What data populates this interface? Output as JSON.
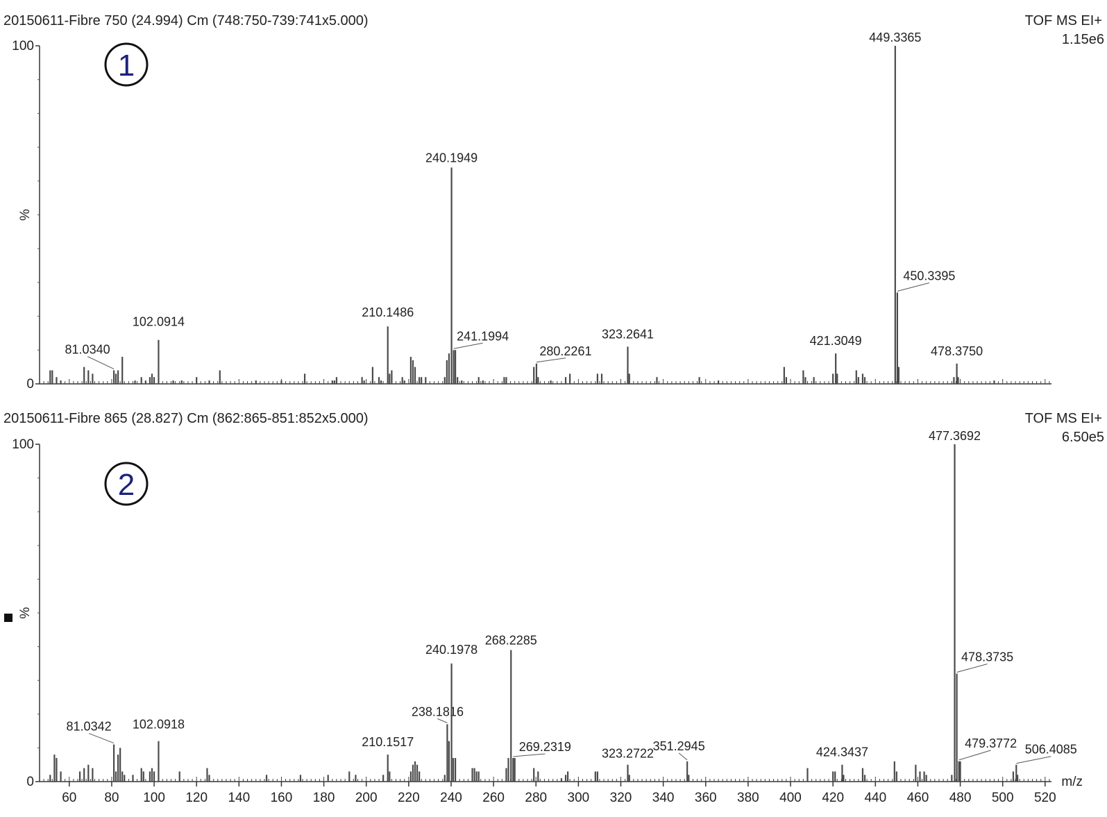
{
  "chart_data": [
    {
      "type": "bar",
      "panel_number": "1",
      "title": "20150611-Fibre 750 (24.994) Cm (748:750-739:741x5.000)",
      "mode_label": "TOF MS EI+",
      "intensity_label": "1.15e6",
      "ylabel": "%",
      "y_tick_labels": [
        "100",
        "0"
      ],
      "ylim": [
        0,
        100
      ],
      "xlim": [
        46,
        523
      ],
      "labeled_peaks": [
        {
          "mz": 81.034,
          "label": "81.0340",
          "intensity": 4
        },
        {
          "mz": 102.0914,
          "label": "102.0914",
          "intensity": 13
        },
        {
          "mz": 210.1486,
          "label": "210.1486",
          "intensity": 17
        },
        {
          "mz": 240.1949,
          "label": "240.1949",
          "intensity": 64
        },
        {
          "mz": 241.1994,
          "label": "241.1994",
          "intensity": 10
        },
        {
          "mz": 280.2261,
          "label": "280.2261",
          "intensity": 6
        },
        {
          "mz": 323.2641,
          "label": "323.2641",
          "intensity": 11
        },
        {
          "mz": 421.3049,
          "label": "421.3049",
          "intensity": 9
        },
        {
          "mz": 449.3365,
          "label": "449.3365",
          "intensity": 100
        },
        {
          "mz": 450.3395,
          "label": "450.3395",
          "intensity": 27
        },
        {
          "mz": 478.375,
          "label": "478.3750",
          "intensity": 6
        }
      ],
      "minor_peaks": [
        [
          51,
          4
        ],
        [
          52,
          4
        ],
        [
          54,
          2
        ],
        [
          56,
          1
        ],
        [
          67,
          5
        ],
        [
          69,
          4
        ],
        [
          71,
          3
        ],
        [
          82,
          3
        ],
        [
          83,
          4
        ],
        [
          85,
          8
        ],
        [
          91,
          1
        ],
        [
          94,
          2
        ],
        [
          96,
          1
        ],
        [
          98,
          2
        ],
        [
          99,
          3
        ],
        [
          100,
          2
        ],
        [
          109,
          1
        ],
        [
          113,
          1
        ],
        [
          120,
          2
        ],
        [
          126,
          1
        ],
        [
          131,
          4
        ],
        [
          148,
          1
        ],
        [
          160,
          1
        ],
        [
          171,
          3
        ],
        [
          184,
          1
        ],
        [
          185,
          1
        ],
        [
          186,
          2
        ],
        [
          198,
          2
        ],
        [
          199,
          1
        ],
        [
          203,
          5
        ],
        [
          206,
          2
        ],
        [
          207,
          1
        ],
        [
          217,
          2
        ],
        [
          218,
          1
        ],
        [
          211,
          3
        ],
        [
          212,
          4
        ],
        [
          221,
          8
        ],
        [
          222,
          7
        ],
        [
          223,
          5
        ],
        [
          225,
          2
        ],
        [
          226,
          2
        ],
        [
          228,
          2
        ],
        [
          237,
          2
        ],
        [
          238,
          7
        ],
        [
          239,
          9
        ],
        [
          242,
          10
        ],
        [
          243,
          2
        ],
        [
          245,
          1
        ],
        [
          253,
          2
        ],
        [
          255,
          1
        ],
        [
          265,
          2
        ],
        [
          266,
          2
        ],
        [
          279,
          5
        ],
        [
          281,
          2
        ],
        [
          287,
          1
        ],
        [
          294,
          2
        ],
        [
          296,
          3
        ],
        [
          309,
          3
        ],
        [
          311,
          3
        ],
        [
          324,
          3
        ],
        [
          337,
          2
        ],
        [
          357,
          2
        ],
        [
          366,
          1
        ],
        [
          397,
          5
        ],
        [
          398,
          2
        ],
        [
          406,
          4
        ],
        [
          407,
          2
        ],
        [
          411,
          2
        ],
        [
          420,
          3
        ],
        [
          422,
          3
        ],
        [
          431,
          4
        ],
        [
          432,
          2
        ],
        [
          434,
          3
        ],
        [
          435,
          2
        ],
        [
          451,
          5
        ],
        [
          477,
          2
        ],
        [
          479,
          2
        ],
        [
          496,
          1
        ]
      ]
    },
    {
      "type": "bar",
      "panel_number": "2",
      "title": "20150611-Fibre 865 (28.827) Cm (862:865-851:852x5.000)",
      "mode_label": "TOF MS EI+",
      "intensity_label": "6.50e5",
      "ylabel": "%",
      "y_tick_labels": [
        "100",
        "0"
      ],
      "ylim": [
        0,
        100
      ],
      "xlim": [
        46,
        523
      ],
      "xlabel": "m/z",
      "x_ticks": [
        60,
        80,
        100,
        120,
        140,
        160,
        180,
        200,
        220,
        240,
        260,
        280,
        300,
        320,
        340,
        360,
        380,
        400,
        420,
        440,
        460,
        480,
        500,
        520
      ],
      "labeled_peaks": [
        {
          "mz": 81.0342,
          "label": "81.0342",
          "intensity": 11
        },
        {
          "mz": 102.0918,
          "label": "102.0918",
          "intensity": 12
        },
        {
          "mz": 210.1517,
          "label": "210.1517",
          "intensity": 8
        },
        {
          "mz": 238.1816,
          "label": "238.1816",
          "intensity": 17
        },
        {
          "mz": 240.1978,
          "label": "240.1978",
          "intensity": 35
        },
        {
          "mz": 268.2285,
          "label": "268.2285",
          "intensity": 39
        },
        {
          "mz": 269.2319,
          "label": "269.2319",
          "intensity": 7
        },
        {
          "mz": 323.2722,
          "label": "323.2722",
          "intensity": 5
        },
        {
          "mz": 351.2945,
          "label": "351.2945",
          "intensity": 6
        },
        {
          "mz": 424.3437,
          "label": "424.3437",
          "intensity": 5
        },
        {
          "mz": 477.3692,
          "label": "477.3692",
          "intensity": 100
        },
        {
          "mz": 478.3735,
          "label": "478.3735",
          "intensity": 32
        },
        {
          "mz": 479.3772,
          "label": "479.3772",
          "intensity": 6
        },
        {
          "mz": 506.4085,
          "label": "506.4085",
          "intensity": 5
        }
      ],
      "minor_peaks": [
        [
          51,
          2
        ],
        [
          53,
          8
        ],
        [
          54,
          7
        ],
        [
          56,
          3
        ],
        [
          65,
          3
        ],
        [
          67,
          4
        ],
        [
          69,
          5
        ],
        [
          71,
          4
        ],
        [
          82,
          3
        ],
        [
          83,
          8
        ],
        [
          84,
          10
        ],
        [
          85,
          3
        ],
        [
          86,
          2
        ],
        [
          90,
          2
        ],
        [
          94,
          4
        ],
        [
          95,
          3
        ],
        [
          98,
          3
        ],
        [
          99,
          4
        ],
        [
          100,
          3
        ],
        [
          112,
          3
        ],
        [
          125,
          4
        ],
        [
          126,
          2
        ],
        [
          153,
          2
        ],
        [
          169,
          2
        ],
        [
          182,
          2
        ],
        [
          192,
          3
        ],
        [
          195,
          2
        ],
        [
          208,
          2
        ],
        [
          211,
          3
        ],
        [
          221,
          3
        ],
        [
          222,
          5
        ],
        [
          223,
          6
        ],
        [
          224,
          5
        ],
        [
          225,
          3
        ],
        [
          237,
          2
        ],
        [
          239,
          12
        ],
        [
          241,
          7
        ],
        [
          242,
          7
        ],
        [
          250,
          4
        ],
        [
          251,
          4
        ],
        [
          252,
          3
        ],
        [
          253,
          3
        ],
        [
          266,
          4
        ],
        [
          267,
          7
        ],
        [
          270,
          7
        ],
        [
          279,
          4
        ],
        [
          281,
          3
        ],
        [
          292,
          1
        ],
        [
          294,
          2
        ],
        [
          295,
          3
        ],
        [
          308,
          3
        ],
        [
          309,
          3
        ],
        [
          324,
          2
        ],
        [
          352,
          2
        ],
        [
          408,
          4
        ],
        [
          420,
          3
        ],
        [
          421,
          3
        ],
        [
          425,
          2
        ],
        [
          434,
          4
        ],
        [
          435,
          2
        ],
        [
          449,
          6
        ],
        [
          450,
          3
        ],
        [
          459,
          5
        ],
        [
          461,
          3
        ],
        [
          463,
          3
        ],
        [
          464,
          2
        ],
        [
          476,
          2
        ],
        [
          480,
          6
        ],
        [
          505,
          3
        ],
        [
          507,
          2
        ]
      ]
    }
  ]
}
